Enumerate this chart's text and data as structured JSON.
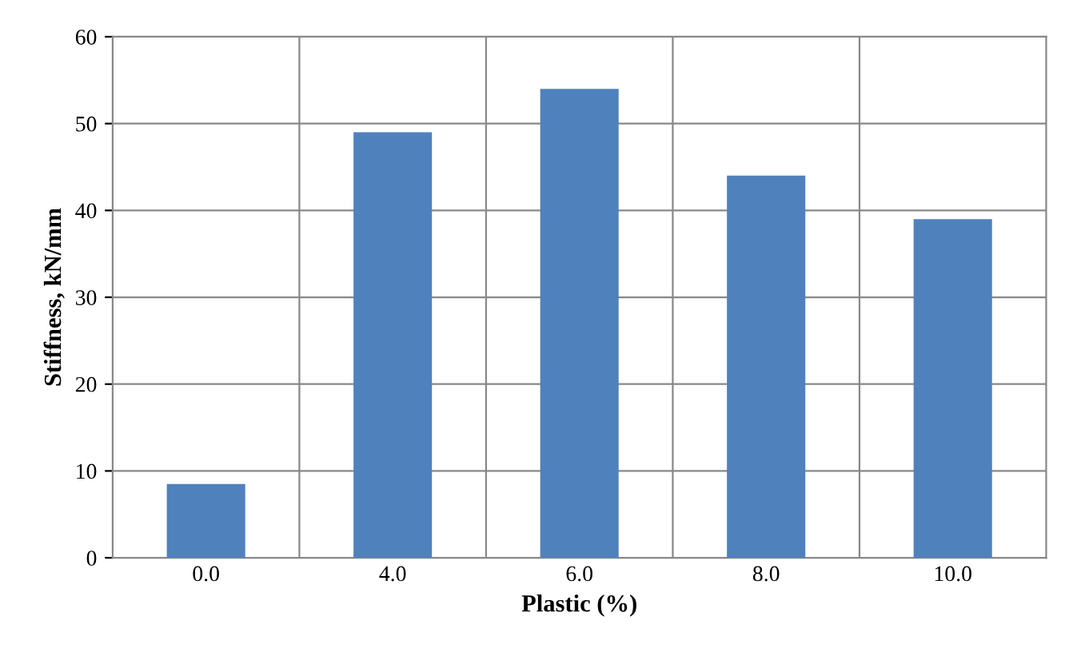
{
  "chart_data": {
    "type": "bar",
    "xlabel": "Plastic (%)",
    "ylabel": "Stiffness, kN/mm",
    "categories": [
      "0.0",
      "4.0",
      "6.0",
      "8.0",
      "10.0"
    ],
    "values": [
      8.5,
      49,
      54,
      44,
      39
    ],
    "color": "#4f81bd",
    "ylim": [
      0,
      60
    ],
    "yticks": [
      0,
      10,
      20,
      30,
      40,
      50,
      60
    ],
    "grid": true
  }
}
